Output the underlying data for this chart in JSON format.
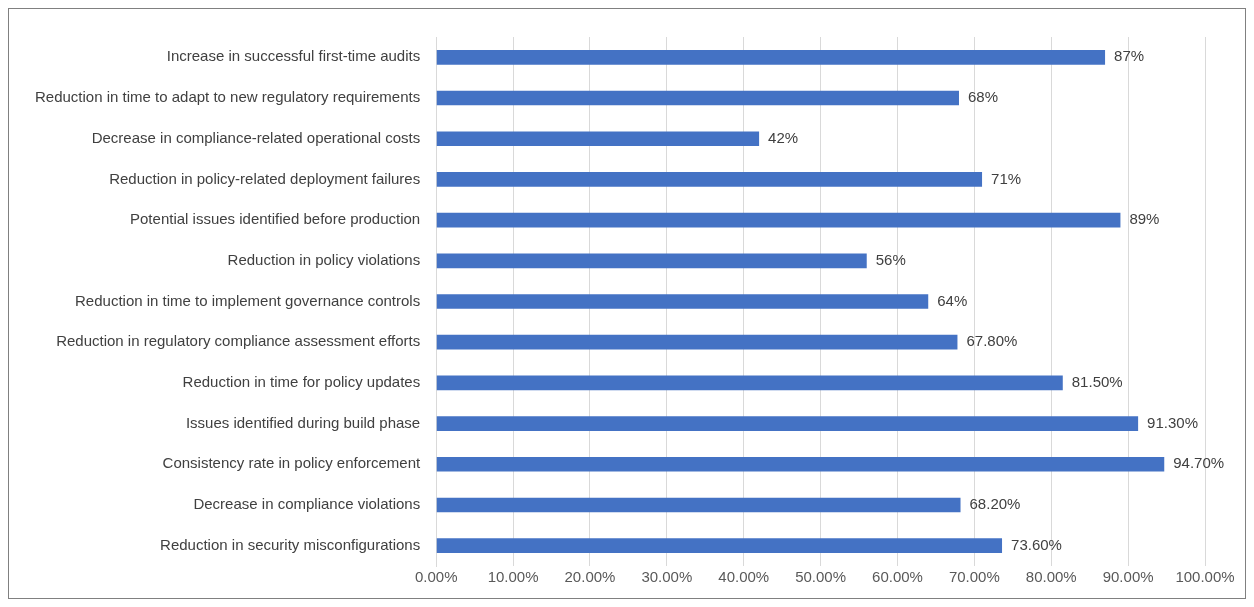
{
  "chart_data": {
    "type": "bar",
    "orientation": "horizontal",
    "categories": [
      "Increase in successful first-time audits",
      "Reduction in time to adapt to new regulatory requirements",
      "Decrease in compliance-related operational costs",
      "Reduction in policy-related deployment failures",
      "Potential issues identified before production",
      "Reduction in policy violations",
      "Reduction in time to implement governance controls",
      "Reduction in regulatory compliance assessment efforts",
      "Reduction in time for policy updates",
      "Issues identified during build phase",
      "Consistency rate in policy enforcement",
      "Decrease in compliance violations",
      "Reduction in security misconfigurations"
    ],
    "values": [
      87,
      68,
      42,
      71,
      89,
      56,
      64,
      67.8,
      81.5,
      91.3,
      94.7,
      68.2,
      73.6
    ],
    "value_labels": [
      "87%",
      "68%",
      "42%",
      "71%",
      "89%",
      "56%",
      "64%",
      "67.80%",
      "81.50%",
      "91.30%",
      "94.70%",
      "68.20%",
      "73.60%"
    ],
    "color": "#4472c4",
    "xlim": [
      0,
      100
    ],
    "xticks": [
      {
        "value": 0,
        "label": "0.00%"
      },
      {
        "value": 10,
        "label": "10.00%"
      },
      {
        "value": 20,
        "label": "20.00%"
      },
      {
        "value": 30,
        "label": "30.00%"
      },
      {
        "value": 40,
        "label": "40.00%"
      },
      {
        "value": 50,
        "label": "50.00%"
      },
      {
        "value": 60,
        "label": "60.00%"
      },
      {
        "value": 70,
        "label": "70.00%"
      },
      {
        "value": 80,
        "label": "80.00%"
      },
      {
        "value": 90,
        "label": "90.00%"
      },
      {
        "value": 100,
        "label": "100.00%"
      }
    ],
    "grid": "x",
    "legend": false
  }
}
